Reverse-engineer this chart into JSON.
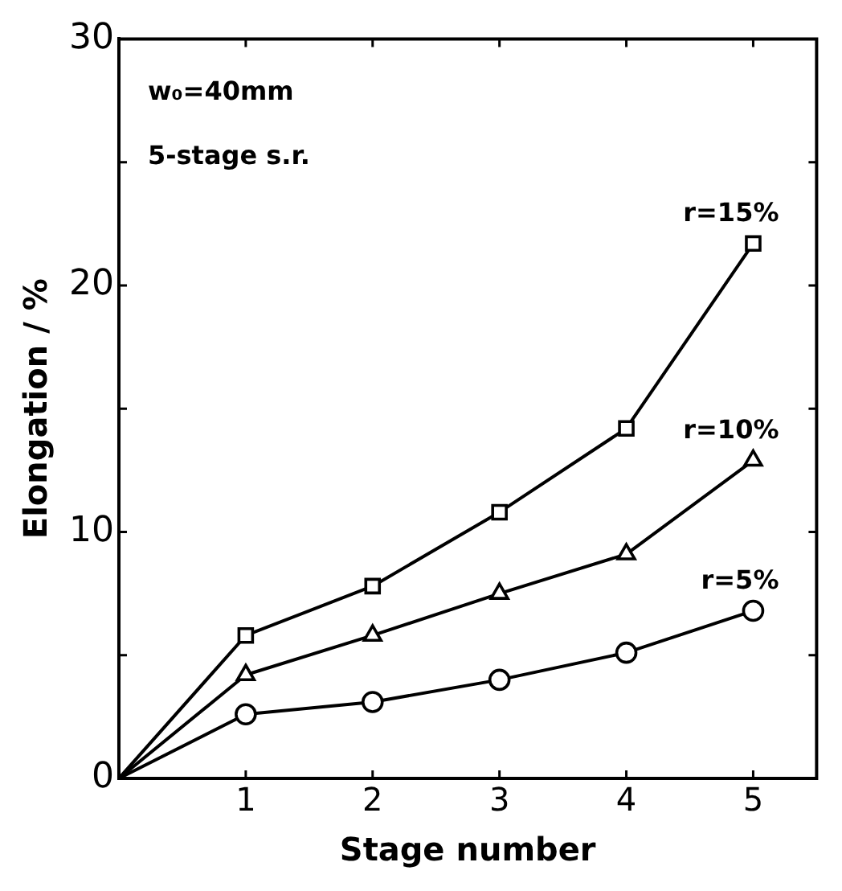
{
  "chart_data": {
    "type": "line",
    "xlabel": "Stage number",
    "ylabel": "Elongation / %",
    "x": [
      0,
      1,
      2,
      3,
      4,
      5
    ],
    "series": [
      {
        "name": "r=15%",
        "color": "#000000",
        "marker": "square",
        "values": [
          0,
          5.8,
          7.8,
          10.8,
          14.2,
          21.7
        ]
      },
      {
        "name": "r=10%",
        "color": "#000000",
        "marker": "triangle",
        "values": [
          0,
          4.2,
          5.8,
          7.5,
          9.1,
          12.9
        ]
      },
      {
        "name": "r=5%",
        "color": "#000000",
        "marker": "circle",
        "values": [
          0,
          2.6,
          3.1,
          4.0,
          5.1,
          6.8
        ]
      }
    ],
    "xlim": [
      0,
      5.5
    ],
    "xticks": [
      1,
      2,
      3,
      4,
      5
    ],
    "ylim": [
      0,
      30
    ],
    "yticks": [
      0,
      {
        "value": 5,
        "label": null
      },
      10,
      {
        "value": 15,
        "label": null
      },
      20,
      {
        "value": 25,
        "label": null
      },
      30
    ],
    "annotations": [
      "w₀=40mm",
      "5-stage s.r."
    ],
    "grid": false,
    "legend": false,
    "line_style": "solid"
  }
}
